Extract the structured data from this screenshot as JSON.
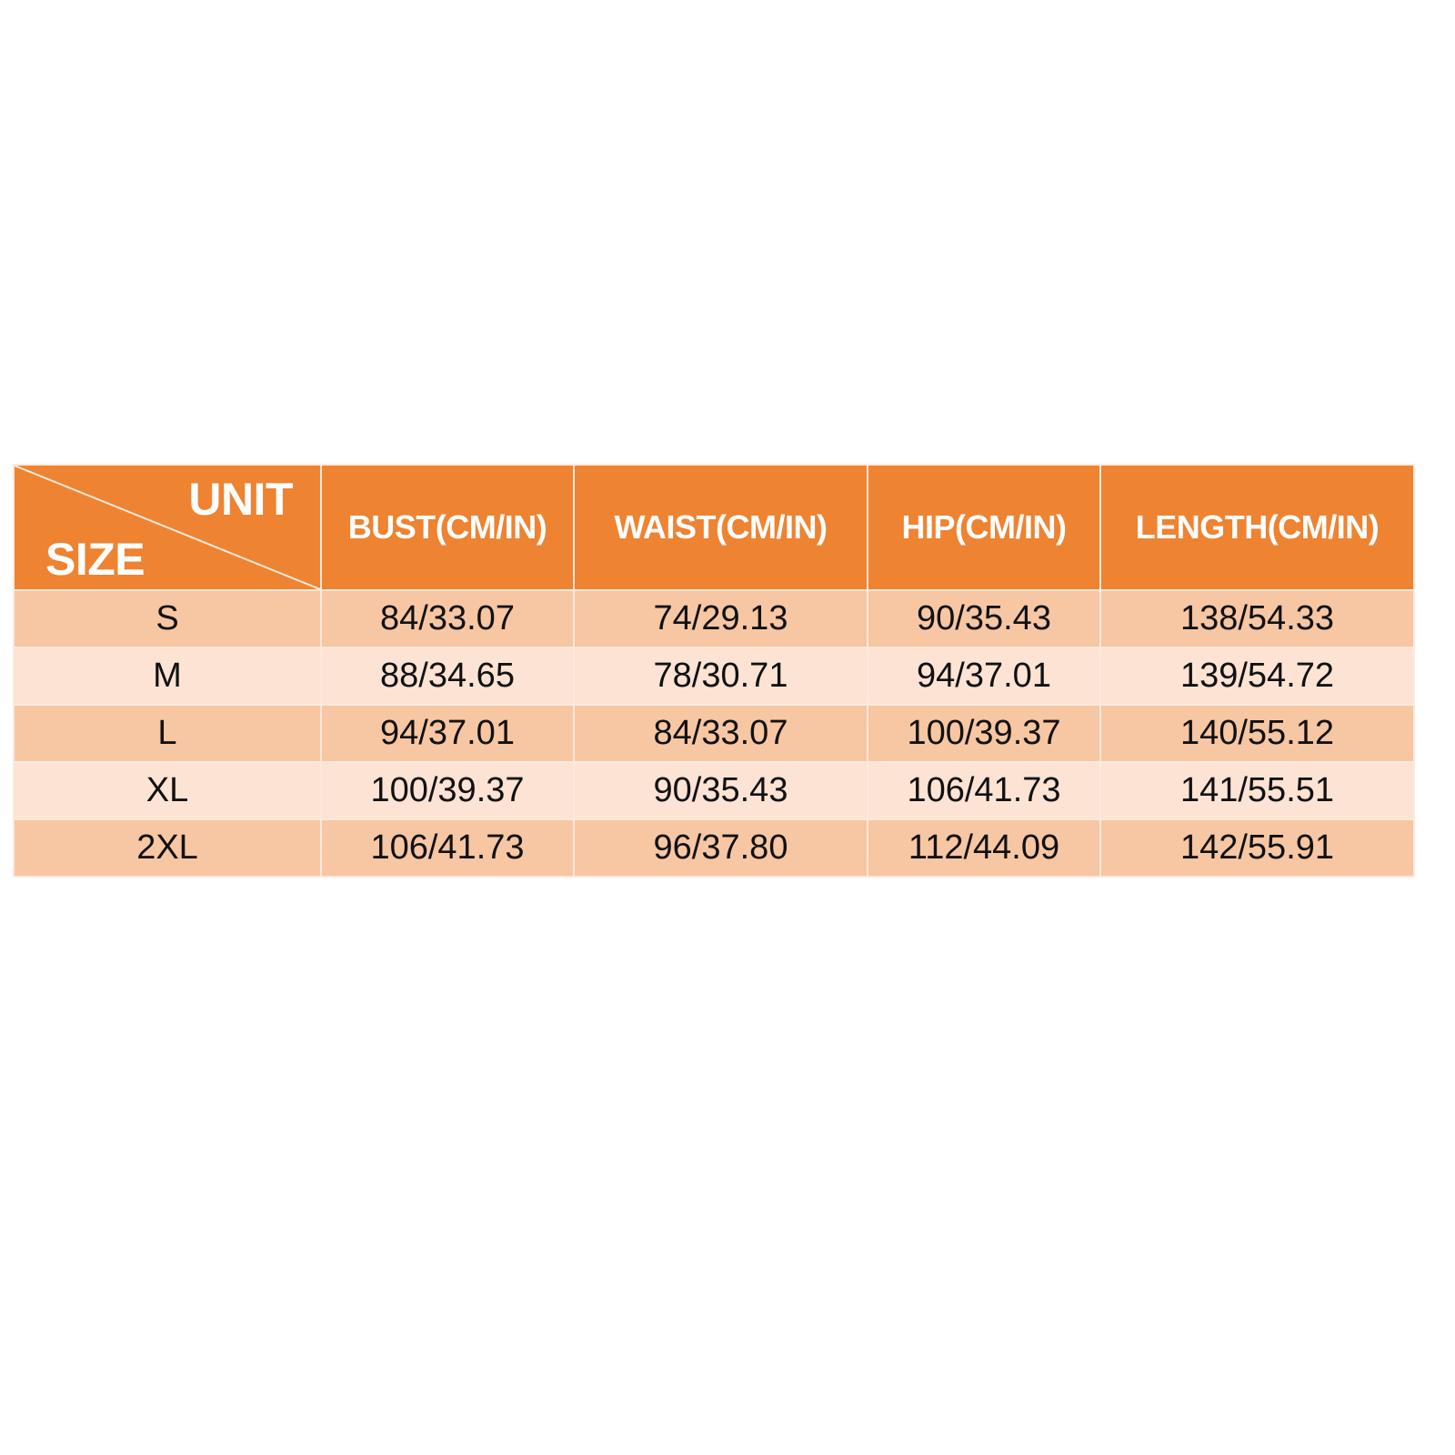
{
  "colors": {
    "header": "#ee8332",
    "row_dark": "#f7c6a3",
    "row_light": "#fce3d4"
  },
  "corner": {
    "unit": "UNIT",
    "size": "SIZE"
  },
  "headers": [
    "BUST(CM/IN)",
    "WAIST(CM/IN)",
    "HIP(CM/IN)",
    "LENGTH(CM/IN)"
  ],
  "rows": [
    {
      "size": "S",
      "values": [
        "84/33.07",
        "74/29.13",
        "90/35.43",
        "138/54.33"
      ]
    },
    {
      "size": "M",
      "values": [
        "88/34.65",
        "78/30.71",
        "94/37.01",
        "139/54.72"
      ]
    },
    {
      "size": "L",
      "values": [
        "94/37.01",
        "84/33.07",
        "100/39.37",
        "140/55.12"
      ]
    },
    {
      "size": "XL",
      "values": [
        "100/39.37",
        "90/35.43",
        "106/41.73",
        "141/55.51"
      ]
    },
    {
      "size": "2XL",
      "values": [
        "106/41.73",
        "96/37.80",
        "112/44.09",
        "142/55.91"
      ]
    }
  ]
}
